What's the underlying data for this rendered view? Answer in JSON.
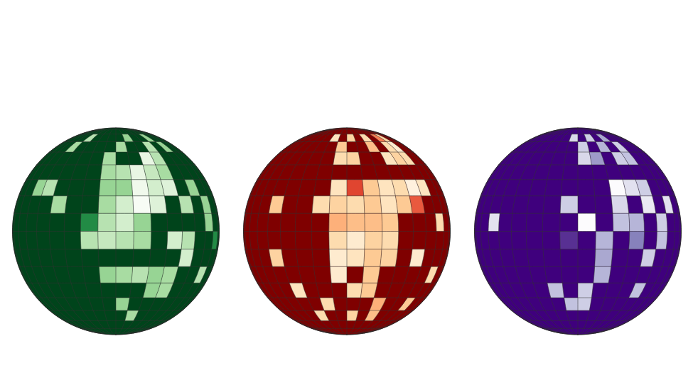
{
  "chart_data": [
    {
      "type": "heatmap",
      "color": "Greens",
      "color_domain": [
        0,
        1
      ],
      "other_cells_value": 1,
      "cells": [
        [
          -40,
          60,
          0.3
        ],
        [
          10,
          60,
          0.4
        ],
        [
          40,
          60,
          0.4
        ],
        [
          -50,
          50,
          0.35
        ],
        [
          0,
          50,
          0.35
        ],
        [
          30,
          50,
          0.3
        ],
        [
          50,
          50,
          0.4
        ],
        [
          -10,
          40,
          0.35
        ],
        [
          20,
          40,
          0.1
        ],
        [
          30,
          40,
          0.3
        ],
        [
          -10,
          30,
          0.35
        ],
        [
          0,
          30,
          0.3
        ],
        [
          10,
          30,
          0.1
        ],
        [
          20,
          30,
          0.25
        ],
        [
          30,
          30,
          0.35
        ],
        [
          -60,
          20,
          0.4
        ],
        [
          -50,
          20,
          0.3
        ],
        [
          -10,
          20,
          0.4
        ],
        [
          0,
          20,
          0.4
        ],
        [
          10,
          20,
          0.05
        ],
        [
          20,
          20,
          0.2
        ],
        [
          30,
          20,
          0.15
        ],
        [
          50,
          20,
          0.4
        ],
        [
          -40,
          10,
          0.35
        ],
        [
          -10,
          10,
          0.35
        ],
        [
          0,
          10,
          0.2
        ],
        [
          10,
          10,
          0.0
        ],
        [
          20,
          10,
          0.15
        ],
        [
          40,
          10,
          0.3
        ],
        [
          60,
          10,
          0.4
        ],
        [
          -20,
          0,
          0.75
        ],
        [
          -10,
          0,
          0.3
        ],
        [
          0,
          0,
          0.2
        ],
        [
          10,
          0,
          0.4
        ],
        [
          60,
          0,
          0.4
        ],
        [
          -20,
          -10,
          0.3
        ],
        [
          -10,
          -10,
          0.25
        ],
        [
          0,
          -10,
          0.3
        ],
        [
          10,
          -10,
          0.35
        ],
        [
          30,
          -10,
          0.2
        ],
        [
          40,
          -10,
          0.3
        ],
        [
          70,
          -10,
          0.75
        ],
        [
          40,
          -20,
          0.2
        ],
        [
          -10,
          -30,
          0.4
        ],
        [
          0,
          -30,
          0.35
        ],
        [
          10,
          -30,
          0.3
        ],
        [
          20,
          -30,
          0.4
        ],
        [
          30,
          -30,
          0.35
        ],
        [
          60,
          -30,
          0.3
        ],
        [
          20,
          -40,
          0.4
        ],
        [
          30,
          -40,
          0.35
        ],
        [
          0,
          -50,
          0.4
        ],
        [
          10,
          -60,
          0.35
        ]
      ]
    },
    {
      "type": "heatmap",
      "color": "OrRd",
      "color_domain": [
        0,
        1
      ],
      "other_cells_value": 1,
      "cells": [
        [
          -20,
          60,
          0.15
        ],
        [
          0,
          60,
          0.25
        ],
        [
          20,
          60,
          0.2
        ],
        [
          40,
          60,
          0.55
        ],
        [
          50,
          60,
          0.25
        ],
        [
          -10,
          50,
          0.3
        ],
        [
          20,
          50,
          0.35
        ],
        [
          40,
          50,
          0.2
        ],
        [
          50,
          50,
          0.1
        ],
        [
          -10,
          40,
          0.2
        ],
        [
          0,
          40,
          0.25
        ],
        [
          30,
          40,
          0.15
        ],
        [
          40,
          40,
          0.25
        ],
        [
          50,
          40,
          0.2
        ],
        [
          -10,
          20,
          0.15
        ],
        [
          0,
          20,
          0.7
        ],
        [
          10,
          20,
          0.3
        ],
        [
          20,
          20,
          0.15
        ],
        [
          30,
          20,
          0.2
        ],
        [
          40,
          20,
          0.05
        ],
        [
          50,
          20,
          0.15
        ],
        [
          -50,
          10,
          0.3
        ],
        [
          -20,
          10,
          0.2
        ],
        [
          -10,
          10,
          0.25
        ],
        [
          0,
          10,
          0.2
        ],
        [
          10,
          10,
          0.3
        ],
        [
          20,
          10,
          0.15
        ],
        [
          30,
          10,
          0.3
        ],
        [
          40,
          10,
          0.65
        ],
        [
          -10,
          0,
          0.4
        ],
        [
          0,
          0,
          0.35
        ],
        [
          10,
          0,
          0.35
        ],
        [
          20,
          0,
          0.3
        ],
        [
          60,
          0,
          0.2
        ],
        [
          -10,
          -10,
          0.2
        ],
        [
          0,
          -10,
          0.1
        ],
        [
          10,
          -10,
          0.25
        ],
        [
          20,
          -10,
          0.2
        ],
        [
          -50,
          -20,
          0.25
        ],
        [
          -10,
          -20,
          0.1
        ],
        [
          0,
          -20,
          0.15
        ],
        [
          10,
          -20,
          0.3
        ],
        [
          20,
          -20,
          0.25
        ],
        [
          40,
          -20,
          0.1
        ],
        [
          -10,
          -30,
          0.1
        ],
        [
          10,
          -30,
          0.3
        ],
        [
          60,
          -30,
          0.2
        ],
        [
          -40,
          -40,
          0.15
        ],
        [
          0,
          -40,
          0.2
        ],
        [
          10,
          -40,
          0.3
        ],
        [
          -20,
          -50,
          0.2
        ],
        [
          20,
          -50,
          0.4
        ],
        [
          50,
          -50,
          0.3
        ],
        [
          -30,
          -60,
          0.2
        ],
        [
          0,
          -60,
          0.25
        ],
        [
          20,
          -60,
          0.35
        ]
      ]
    },
    {
      "type": "heatmap",
      "color": "Purples",
      "color_domain": [
        0,
        1
      ],
      "other_cells_value": 1,
      "cells": [
        [
          -10,
          60,
          0.25
        ],
        [
          10,
          60,
          0.3
        ],
        [
          30,
          60,
          0.45
        ],
        [
          0,
          50,
          0.3
        ],
        [
          20,
          50,
          0.4
        ],
        [
          40,
          50,
          0.3
        ],
        [
          0,
          40,
          0.25
        ],
        [
          10,
          40,
          0.5
        ],
        [
          30,
          40,
          0.3
        ],
        [
          40,
          40,
          0.35
        ],
        [
          20,
          20,
          0.0
        ],
        [
          30,
          20,
          0.2
        ],
        [
          40,
          20,
          0.3
        ],
        [
          -10,
          10,
          0.3
        ],
        [
          20,
          10,
          0.25
        ],
        [
          40,
          10,
          0.15
        ],
        [
          60,
          10,
          0.2
        ],
        [
          -60,
          0,
          0.2
        ],
        [
          0,
          0,
          0.0
        ],
        [
          20,
          0,
          0.35
        ],
        [
          30,
          0,
          0.4
        ],
        [
          50,
          0,
          0.3
        ],
        [
          -10,
          -10,
          0.85
        ],
        [
          10,
          -10,
          0.4
        ],
        [
          30,
          -10,
          0.6
        ],
        [
          50,
          -10,
          0.35
        ],
        [
          10,
          -20,
          0.45
        ],
        [
          40,
          -20,
          0.3
        ],
        [
          10,
          -30,
          0.4
        ],
        [
          -20,
          -40,
          0.35
        ],
        [
          0,
          -40,
          0.3
        ],
        [
          40,
          -40,
          0.35
        ],
        [
          -10,
          -50,
          0.35
        ],
        [
          0,
          -50,
          0.3
        ]
      ]
    }
  ]
}
